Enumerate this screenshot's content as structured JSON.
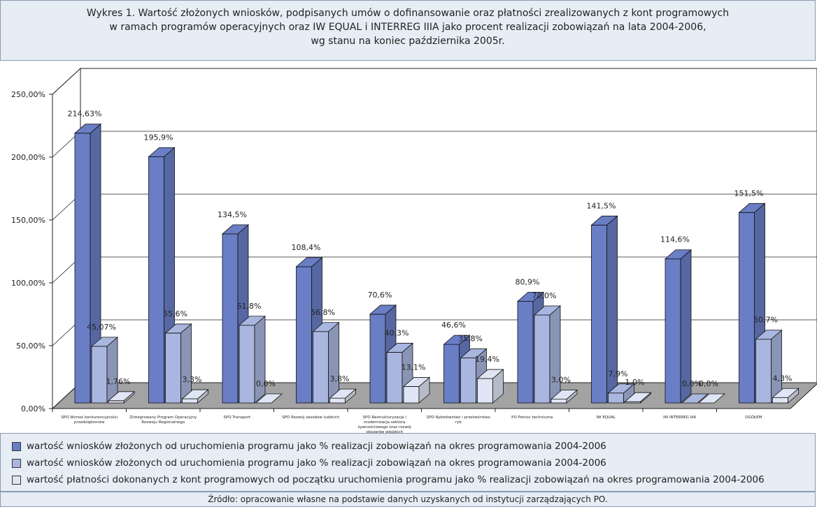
{
  "chart_data": {
    "type": "bar3d",
    "title": [
      "Wykres 1. Wartość złożonych wniosków, podpisanych umów o dofinansowanie oraz płatności zrealizowanych z kont programowych",
      "w ramach programów operacyjnych oraz IW EQUAL i INTERREG IIIA jako procent realizacji zobowiązań na lata 2004-2006,",
      "wg stanu na  koniec października 2005r."
    ],
    "categories": [
      "SPO Wzrost konkurencyjności przedsiębiorstw",
      "Zintegrowany Program Operacyjny Rozwoju Regionalnego",
      "SPO Transport",
      "SPO Rozwój zasobów ludzkich",
      "SPO Restrukturyzacja i modernizacja sektora żywnościowego oraz rozwój obszarów wiejskich",
      "SPO Rybołówstwo i przetwórstwo ryb",
      "PO Pomoc techniczna",
      "IW EQUAL",
      "IW INTERREG IIIA",
      "OGÓŁEM"
    ],
    "series": [
      {
        "name": "wartość wniosków złożonych od uruchomienia programu jako % realizacji zobowiązań na okres programowania 2004-2006",
        "color": "#6a7ec6",
        "values": [
          214.63,
          195.9,
          134.5,
          108.4,
          70.6,
          46.6,
          80.9,
          141.5,
          114.6,
          151.5
        ],
        "value_labels": [
          "214,63%",
          "195,9%",
          "134,5%",
          "108,4%",
          "70,6%",
          "46,6%",
          "80,9%",
          "141,5%",
          "114,6%",
          "151,5%"
        ]
      },
      {
        "name": "wartość wniosków złożonych od uruchomienia programu jako % realizacji zobowiązań na okres programowania 2004-2006",
        "color": "#a9b6df",
        "values": [
          45.07,
          55.6,
          61.8,
          56.8,
          40.3,
          35.8,
          70.0,
          7.9,
          0.0,
          50.7
        ],
        "value_labels": [
          "45,07%",
          "55,6%",
          "61,8%",
          "56,8%",
          "40,3%",
          "35,8%",
          "70,0%",
          "7,9%",
          "0,0%",
          "50,7%"
        ]
      },
      {
        "name": "wartość płatności dokonanych z kont programowych od początku uruchomienia programu jako % realizacji zobowiązań na okres programowania 2004-2006",
        "color": "#dfe5f4",
        "values": [
          1.76,
          3.3,
          0.0,
          3.8,
          13.1,
          19.4,
          3.0,
          1.0,
          0.0,
          4.3
        ],
        "value_labels": [
          "1,76%",
          "3,3%",
          "0,0%",
          "3,8%",
          "13,1%",
          "19,4%",
          "3,0%",
          "1,0%",
          "0,0%",
          "4,3%"
        ]
      }
    ],
    "ylim": [
      0,
      250
    ],
    "yticks": [
      {
        "value": 0,
        "label": "0,00%"
      },
      {
        "value": 50,
        "label": "50,00%"
      },
      {
        "value": 100,
        "label": "100,00%"
      },
      {
        "value": 150,
        "label": "150,00%"
      },
      {
        "value": 200,
        "label": "200,00%"
      },
      {
        "value": 250,
        "label": "250,00%"
      }
    ],
    "grid": true,
    "source": "Źródło: opracowanie własne na podstawie danych uzyskanych od instytucji zarządzających PO."
  }
}
